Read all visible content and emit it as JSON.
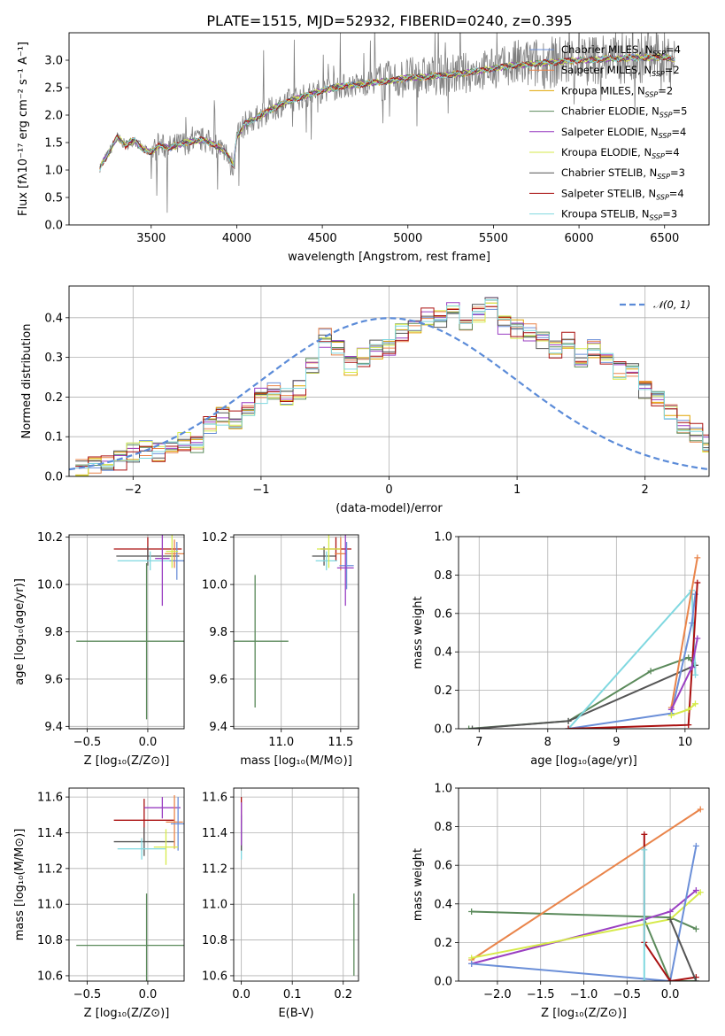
{
  "title": "PLATE=1515, MJD=52932, FIBERID=0240, z=0.395",
  "colors": {
    "chabrier_miles": "#6b8fd8",
    "salpeter_miles": "#e9844a",
    "kroupa_miles": "#e0a400",
    "chabrier_elodie": "#5b8a5b",
    "salpeter_elodie": "#9a3fc2",
    "kroupa_elodie": "#d6ea4a",
    "chabrier_stelib": "#555555",
    "salpeter_stelib": "#aa1010",
    "kroupa_stelib": "#80d8e0",
    "data": "#808080",
    "normal": "#5b8bd8"
  },
  "chart_data": [
    {
      "type": "line",
      "title": "PLATE=1515, MJD=52932, FIBERID=0240, z=0.395",
      "xlabel": "wavelength [Angstrom, rest frame]",
      "ylabel": "Flux [fλ10⁻¹⁷ erg cm⁻² s⁻¹ A⁻¹]",
      "xlim": [
        3020,
        6760
      ],
      "ylim": [
        0,
        3.5
      ],
      "xticks": [
        3500,
        4000,
        4500,
        5000,
        5500,
        6000,
        6500
      ],
      "yticks": [
        0.0,
        0.5,
        1.0,
        1.5,
        2.0,
        2.5,
        3.0
      ],
      "legend_position": "top-right",
      "continuum": {
        "x": [
          3200,
          3220,
          3260,
          3300,
          3350,
          3400,
          3450,
          3500,
          3550,
          3600,
          3700,
          3800,
          3880,
          3940,
          3980,
          4000,
          4050,
          4100,
          4200,
          4300,
          4400,
          4500,
          4600,
          4700,
          4800,
          4900,
          5000,
          5100,
          5200,
          5300,
          5400,
          5500,
          5600,
          5700,
          5800,
          5900,
          6000,
          6100,
          6200,
          6300,
          6400,
          6500,
          6560
        ],
        "y": [
          1.05,
          1.15,
          1.35,
          1.6,
          1.45,
          1.55,
          1.38,
          1.32,
          1.45,
          1.4,
          1.5,
          1.55,
          1.45,
          1.3,
          1.1,
          1.6,
          1.85,
          1.92,
          2.1,
          2.25,
          2.35,
          2.45,
          2.52,
          2.55,
          2.6,
          2.62,
          2.68,
          2.7,
          2.72,
          2.75,
          2.8,
          2.85,
          2.9,
          2.92,
          2.95,
          2.98,
          3.0,
          3.02,
          3.03,
          3.04,
          3.05,
          3.06,
          3.0
        ]
      },
      "series": [
        {
          "name": "Chabrier MILES, N_SSP=4"
        },
        {
          "name": "Salpeter MILES, N_SSP=2"
        },
        {
          "name": "Kroupa MILES, N_SSP=2"
        },
        {
          "name": "Chabrier ELODIE, N_SSP=5"
        },
        {
          "name": "Salpeter ELODIE, N_SSP=4"
        },
        {
          "name": "Kroupa ELODIE, N_SSP=4"
        },
        {
          "name": "Chabrier STELIB, N_SSP=3"
        },
        {
          "name": "Salpeter STELIB, N_SSP=4"
        },
        {
          "name": "Kroupa STELIB, N_SSP=3"
        }
      ]
    },
    {
      "type": "histogram",
      "xlabel": "(data-model)/error",
      "ylabel": "Normed distribution",
      "xlim": [
        -2.5,
        2.5
      ],
      "ylim": [
        0,
        0.48
      ],
      "xticks": [
        -2,
        -1,
        0,
        1,
        2
      ],
      "yticks": [
        0.0,
        0.1,
        0.2,
        0.3,
        0.4
      ],
      "legend": "𝒩(0, 1)",
      "legend_position": "top-right",
      "bin_edges_start": -2.5,
      "bin_width": 0.1,
      "values": [
        0.02,
        0.03,
        0.03,
        0.04,
        0.06,
        0.07,
        0.06,
        0.08,
        0.09,
        0.08,
        0.13,
        0.15,
        0.14,
        0.17,
        0.2,
        0.22,
        0.2,
        0.22,
        0.28,
        0.35,
        0.32,
        0.28,
        0.3,
        0.32,
        0.33,
        0.36,
        0.38,
        0.4,
        0.4,
        0.42,
        0.39,
        0.41,
        0.44,
        0.38,
        0.37,
        0.36,
        0.34,
        0.32,
        0.34,
        0.3,
        0.32,
        0.3,
        0.27,
        0.27,
        0.22,
        0.19,
        0.16,
        0.13,
        0.11,
        0.08,
        0.06,
        0.08,
        0.07,
        0.06,
        0.05,
        0.05,
        0.04,
        0.04,
        0.03
      ]
    },
    {
      "type": "errorbar",
      "xlabel": "Z [log₁₀(Z/Z⊙)]",
      "ylabel": "age  [log₁₀(age/yr)]",
      "xlim": [
        -0.65,
        0.3
      ],
      "ylim": [
        9.39,
        10.21
      ],
      "xticks": [
        -0.5,
        0.0
      ],
      "xticklabels": [
        "−0.5",
        "0.0"
      ],
      "yticks": [
        9.4,
        9.6,
        9.8,
        10.0,
        10.2
      ],
      "points": [
        {
          "x": -0.01,
          "y": 9.76,
          "xerr": 0.58,
          "yerr": 0.33,
          "color": "chabrier_elodie"
        },
        {
          "x": 0.0,
          "y": 10.15,
          "xerr": 0.28,
          "yerr": 0.05,
          "color": "salpeter_stelib"
        },
        {
          "x": 0.0,
          "y": 10.12,
          "xerr": 0.26,
          "yerr": 0.04,
          "color": "chabrier_stelib"
        },
        {
          "x": 0.02,
          "y": 10.1,
          "xerr": 0.27,
          "yerr": 0.04,
          "color": "kroupa_stelib"
        },
        {
          "x": 0.22,
          "y": 10.13,
          "xerr": 0.08,
          "yerr": 0.06,
          "color": "salpeter_miles"
        },
        {
          "x": 0.24,
          "y": 10.1,
          "xerr": 0.06,
          "yerr": 0.08,
          "color": "chabrier_miles"
        },
        {
          "x": 0.12,
          "y": 10.11,
          "xerr": 0.06,
          "yerr": 0.2,
          "color": "salpeter_elodie"
        },
        {
          "x": 0.2,
          "y": 10.14,
          "xerr": 0.05,
          "yerr": 0.07,
          "color": "kroupa_elodie"
        }
      ]
    },
    {
      "type": "errorbar",
      "xlabel": "mass [log₁₀(M/M⊙)]",
      "xlim": [
        10.6,
        11.65
      ],
      "ylim": [
        9.39,
        10.21
      ],
      "xticks": [
        11.0,
        11.5
      ],
      "xticklabels": [
        "11.0",
        "11.5"
      ],
      "yticks": [
        9.4,
        9.6,
        9.8,
        10.0,
        10.2
      ],
      "points": [
        {
          "x": 10.78,
          "y": 9.76,
          "xerr": 0.28,
          "yerr": 0.28,
          "color": "chabrier_elodie"
        },
        {
          "x": 11.46,
          "y": 10.15,
          "xerr": 0.13,
          "yerr": 0.05,
          "color": "salpeter_stelib"
        },
        {
          "x": 11.36,
          "y": 10.12,
          "xerr": 0.1,
          "yerr": 0.04,
          "color": "chabrier_stelib"
        },
        {
          "x": 11.38,
          "y": 10.1,
          "xerr": 0.09,
          "yerr": 0.04,
          "color": "kroupa_stelib"
        },
        {
          "x": 11.5,
          "y": 10.13,
          "xerr": 0.05,
          "yerr": 0.07,
          "color": "salpeter_miles"
        },
        {
          "x": 11.55,
          "y": 10.08,
          "xerr": 0.06,
          "yerr": 0.1,
          "color": "chabrier_miles"
        },
        {
          "x": 11.54,
          "y": 10.07,
          "xerr": 0.07,
          "yerr": 0.16,
          "color": "salpeter_elodie"
        },
        {
          "x": 11.4,
          "y": 10.15,
          "xerr": 0.1,
          "yerr": 0.08,
          "color": "kroupa_elodie"
        }
      ]
    },
    {
      "type": "line",
      "xlabel": "age  [log₁₀(age/yr)]",
      "ylabel": "mass weight",
      "xlim": [
        6.7,
        10.35
      ],
      "ylim": [
        0,
        1.0
      ],
      "xticks": [
        7,
        8,
        9,
        10
      ],
      "yticks": [
        0.0,
        0.2,
        0.4,
        0.6,
        0.8,
        1.0
      ],
      "series": [
        {
          "color": "chabrier_elodie",
          "x": [
            6.85,
            8.3,
            9.5,
            10.05,
            10.15
          ],
          "y": [
            0.0,
            0.04,
            0.3,
            0.37,
            0.33
          ]
        },
        {
          "color": "chabrier_stelib",
          "x": [
            6.9,
            8.3,
            10.15
          ],
          "y": [
            0.0,
            0.04,
            0.33
          ]
        },
        {
          "color": "kroupa_stelib",
          "x": [
            8.3,
            10.1,
            10.15
          ],
          "y": [
            0.0,
            0.72,
            0.28
          ]
        },
        {
          "color": "chabrier_miles",
          "x": [
            8.3,
            9.8,
            10.1,
            10.15
          ],
          "y": [
            0.0,
            0.08,
            0.55,
            0.7
          ]
        },
        {
          "color": "salpeter_miles",
          "x": [
            9.8,
            10.18
          ],
          "y": [
            0.11,
            0.89
          ]
        },
        {
          "color": "salpeter_stelib",
          "x": [
            8.3,
            10.05,
            10.18
          ],
          "y": [
            0.0,
            0.02,
            0.76
          ]
        },
        {
          "color": "salpeter_elodie",
          "x": [
            9.8,
            10.1,
            10.18
          ],
          "y": [
            0.1,
            0.32,
            0.47
          ]
        },
        {
          "color": "kroupa_elodie",
          "x": [
            9.8,
            10.05,
            10.15
          ],
          "y": [
            0.07,
            0.1,
            0.13
          ]
        }
      ]
    },
    {
      "type": "errorbar",
      "xlabel": "Z [log₁₀(Z/Z⊙)]",
      "ylabel": "mass [log₁₀(M/M⊙)]",
      "xlim": [
        -0.65,
        0.3
      ],
      "ylim": [
        10.57,
        11.65
      ],
      "xticks": [
        -0.5,
        0.0
      ],
      "xticklabels": [
        "−0.5",
        "0.0"
      ],
      "yticks": [
        10.6,
        10.8,
        11.0,
        11.2,
        11.4,
        11.6
      ],
      "points": [
        {
          "x": -0.01,
          "y": 10.77,
          "xerr": 0.58,
          "yerr": 0.29,
          "color": "chabrier_elodie"
        },
        {
          "x": -0.03,
          "y": 11.47,
          "xerr": 0.25,
          "yerr": 0.12,
          "color": "salpeter_stelib"
        },
        {
          "x": -0.03,
          "y": 11.35,
          "xerr": 0.25,
          "yerr": 0.08,
          "color": "chabrier_stelib"
        },
        {
          "x": -0.05,
          "y": 11.31,
          "xerr": 0.2,
          "yerr": 0.06,
          "color": "kroupa_stelib"
        },
        {
          "x": 0.12,
          "y": 11.54,
          "xerr": 0.15,
          "yerr": 0.06,
          "color": "salpeter_elodie"
        },
        {
          "x": 0.22,
          "y": 11.46,
          "xerr": 0.07,
          "yerr": 0.15,
          "color": "salpeter_miles"
        },
        {
          "x": 0.25,
          "y": 11.45,
          "xerr": 0.06,
          "yerr": 0.15,
          "color": "chabrier_miles"
        },
        {
          "x": 0.15,
          "y": 11.32,
          "xerr": 0.1,
          "yerr": 0.1,
          "color": "kroupa_elodie"
        }
      ]
    },
    {
      "type": "errorbar",
      "xlabel": "E(B-V)",
      "xlim": [
        -0.015,
        0.23
      ],
      "ylim": [
        10.57,
        11.65
      ],
      "xticks": [
        0.0,
        0.1,
        0.2
      ],
      "xticklabels": [
        "0.0",
        "0.1",
        "0.2"
      ],
      "yticks": [
        10.6,
        10.8,
        11.0,
        11.2,
        11.4,
        11.6
      ],
      "points": [
        {
          "x": 0.0,
          "y": 11.45,
          "xerr": 0.0,
          "yerr": 0.15,
          "color": "salpeter_stelib"
        },
        {
          "x": 0.0,
          "y": 11.35,
          "xerr": 0.0,
          "yerr": 0.1,
          "color": "kroupa_stelib"
        },
        {
          "x": 0.0,
          "y": 11.4,
          "xerr": 0.0,
          "yerr": 0.1,
          "color": "chabrier_stelib"
        },
        {
          "x": 0.0,
          "y": 11.45,
          "xerr": 0.0,
          "yerr": 0.12,
          "color": "salpeter_elodie"
        },
        {
          "x": 0.221,
          "y": 10.83,
          "xerr": 0.0,
          "yerr": 0.23,
          "color": "chabrier_elodie"
        }
      ]
    },
    {
      "type": "line",
      "xlabel": "Z [log₁₀(Z/Z⊙)]",
      "ylabel": "mass weight",
      "xlim": [
        -2.45,
        0.45
      ],
      "ylim": [
        0,
        1.0
      ],
      "xticks": [
        -2.0,
        -1.5,
        -1.0,
        -0.5,
        0.0
      ],
      "xticklabels": [
        "−2.0",
        "−1.5",
        "−1.0",
        "−0.5",
        "0.0"
      ],
      "yticks": [
        0.0,
        0.2,
        0.4,
        0.6,
        0.8,
        1.0
      ],
      "series": [
        {
          "color": "chabrier_elodie",
          "x": [
            -2.3,
            0.0,
            0.3
          ],
          "y": [
            0.36,
            0.33,
            0.27
          ]
        },
        {
          "color": "chabrier_elodie",
          "x": [
            -0.3,
            0.0,
            0.3
          ],
          "y": [
            0.32,
            0.0,
            0.0
          ]
        },
        {
          "color": "salpeter_miles",
          "x": [
            -2.3,
            0.35
          ],
          "y": [
            0.11,
            0.89
          ]
        },
        {
          "color": "salpeter_elodie",
          "x": [
            -2.3,
            -0.3,
            0.0,
            0.3
          ],
          "y": [
            0.09,
            0.32,
            0.36,
            0.47
          ]
        },
        {
          "color": "kroupa_elodie",
          "x": [
            -2.3,
            0.0,
            0.35
          ],
          "y": [
            0.12,
            0.32,
            0.46
          ]
        },
        {
          "color": "chabrier_miles",
          "x": [
            -2.3,
            0.0,
            0.3
          ],
          "y": [
            0.09,
            0.0,
            0.7
          ]
        },
        {
          "color": "salpeter_stelib",
          "x": [
            -0.3,
            -0.3,
            0.0,
            0.3
          ],
          "y": [
            0.76,
            0.2,
            0.0,
            0.02
          ]
        },
        {
          "color": "kroupa_stelib",
          "x": [
            -0.3,
            -0.3
          ],
          "y": [
            0.68,
            0.0
          ]
        },
        {
          "color": "chabrier_stelib",
          "x": [
            0.0,
            0.3
          ],
          "y": [
            0.32,
            0.0
          ]
        }
      ]
    }
  ]
}
